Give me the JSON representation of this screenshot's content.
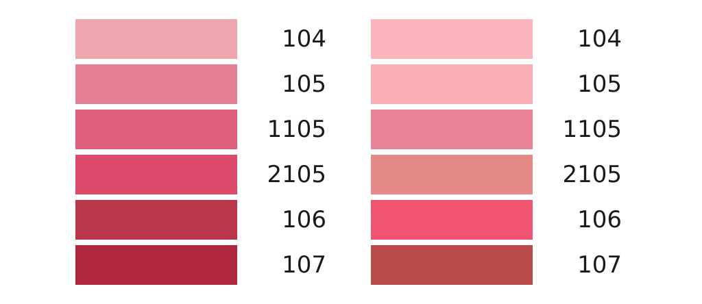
{
  "palettes": [
    {
      "swatches": [
        {
          "code": "104",
          "color": "#eda6ae"
        },
        {
          "code": "105",
          "color": "#e57f94"
        },
        {
          "code": "1105",
          "color": "#df607c"
        },
        {
          "code": "2105",
          "color": "#db4a6a"
        },
        {
          "code": "106",
          "color": "#ba364a"
        },
        {
          "code": "107",
          "color": "#ae273d"
        }
      ]
    },
    {
      "swatches": [
        {
          "code": "104",
          "color": "#fcb4bd"
        },
        {
          "code": "105",
          "color": "#f9aeb5"
        },
        {
          "code": "1105",
          "color": "#e98498"
        },
        {
          "code": "2105",
          "color": "#e68a87"
        },
        {
          "code": "106",
          "color": "#ef5470"
        },
        {
          "code": "107",
          "color": "#b84a49"
        }
      ]
    }
  ]
}
